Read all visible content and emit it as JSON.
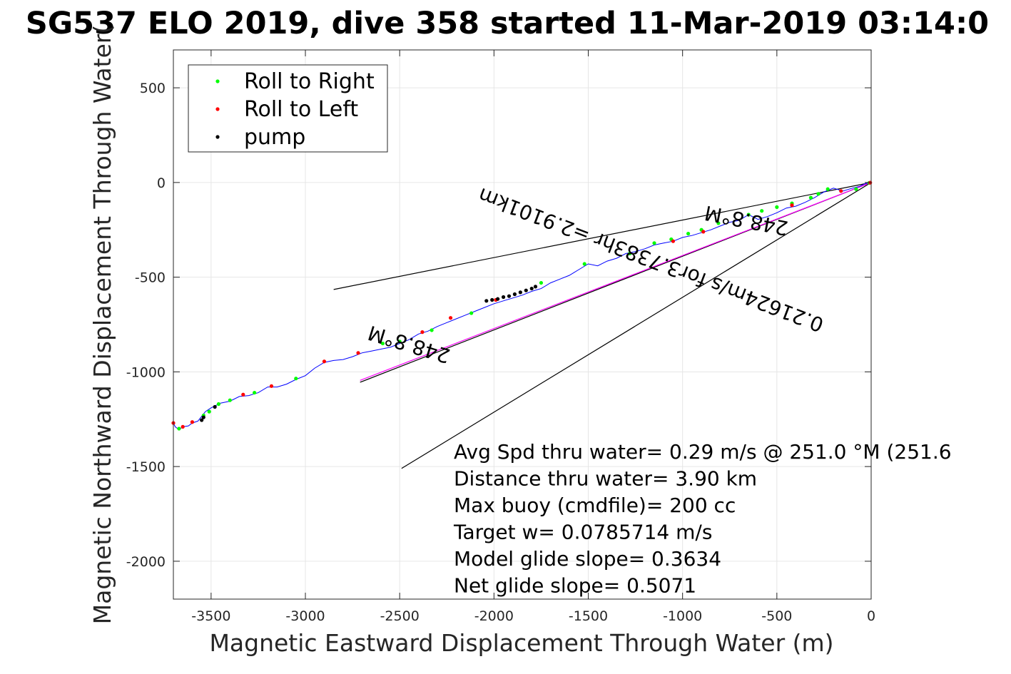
{
  "chart_data": {
    "type": "scatter",
    "title": "SG537 ELO 2019, dive 358 started 11-Mar-2019 03:14:0",
    "xlabel": "Magnetic Eastward Displacement Through Water (m)",
    "ylabel": "Magnetic Northward Displacement Through Water(",
    "xlim": [
      -3700,
      0
    ],
    "ylim": [
      -2200,
      700
    ],
    "xticks": [
      -3500,
      -3000,
      -2500,
      -2000,
      -1500,
      -1000,
      -500,
      0
    ],
    "yticks": [
      500,
      0,
      -500,
      -1000,
      -1500,
      -2000
    ],
    "grid": true,
    "legend_position": "top-left",
    "legend": [
      {
        "label": "Roll to Right",
        "color": "#00ff00"
      },
      {
        "label": "Roll to Left",
        "color": "#ff0000"
      },
      {
        "label": "pump",
        "color": "#000000"
      }
    ],
    "track": {
      "color": "#0000ff",
      "x": [
        0,
        -30,
        -60,
        -100,
        -150,
        -200,
        -250,
        -300,
        -350,
        -400,
        -450,
        -500,
        -550,
        -600,
        -650,
        -700,
        -750,
        -800,
        -850,
        -900,
        -950,
        -1000,
        -1050,
        -1100,
        -1150,
        -1200,
        -1250,
        -1300,
        -1350,
        -1400,
        -1450,
        -1500,
        -1550,
        -1600,
        -1650,
        -1700,
        -1750,
        -1800,
        -1850,
        -1900,
        -1950,
        -2000,
        -2050,
        -2100,
        -2150,
        -2200,
        -2250,
        -2300,
        -2350,
        -2400,
        -2450,
        -2500,
        -2550,
        -2600,
        -2650,
        -2700,
        -2750,
        -2800,
        -2850,
        -2900,
        -2950,
        -3000,
        -3050,
        -3100,
        -3150,
        -3200,
        -3250,
        -3300,
        -3350,
        -3400,
        -3450,
        -3500,
        -3530,
        -3550,
        -3570,
        -3600,
        -3620,
        -3650,
        -3670,
        -3690,
        -3700
      ],
      "y": [
        0,
        -5,
        -20,
        -30,
        -45,
        -30,
        -50,
        -80,
        -105,
        -125,
        -135,
        -160,
        -180,
        -195,
        -170,
        -200,
        -210,
        -230,
        -250,
        -265,
        -280,
        -290,
        -310,
        -320,
        -330,
        -350,
        -365,
        -375,
        -400,
        -415,
        -440,
        -430,
        -460,
        -490,
        -510,
        -530,
        -560,
        -575,
        -595,
        -610,
        -625,
        -640,
        -660,
        -680,
        -700,
        -720,
        -740,
        -760,
        -785,
        -800,
        -830,
        -850,
        -870,
        -880,
        -890,
        -900,
        -920,
        -935,
        -940,
        -950,
        -980,
        -1020,
        -1040,
        -1065,
        -1080,
        -1080,
        -1110,
        -1125,
        -1130,
        -1155,
        -1165,
        -1190,
        -1210,
        -1235,
        -1260,
        -1270,
        -1285,
        -1290,
        -1305,
        -1290,
        -1270
      ]
    },
    "roll_right": {
      "x": [
        -10,
        -80,
        -230,
        -280,
        -320,
        -420,
        -500,
        -580,
        -650,
        -810,
        -900,
        -970,
        -1060,
        -1150,
        -1280,
        -1520,
        -1750,
        -2120,
        -2330,
        -2500,
        -2590,
        -3050,
        -3270,
        -3400,
        -3460,
        -3510,
        -3540,
        -3670
      ],
      "y": [
        -2,
        -35,
        -35,
        -60,
        -80,
        -110,
        -130,
        -150,
        -170,
        -215,
        -250,
        -270,
        -300,
        -320,
        -375,
        -430,
        -530,
        -690,
        -780,
        -840,
        -850,
        -1035,
        -1110,
        -1150,
        -1170,
        -1210,
        -1230,
        -1300
      ]
    },
    "roll_left": {
      "x": [
        -5,
        -160,
        -420,
        -890,
        -1050,
        -1990,
        -2230,
        -2380,
        -2720,
        -2900,
        -3180,
        -3330,
        -3600,
        -3700,
        -3650
      ],
      "y": [
        -1,
        -45,
        -120,
        -260,
        -310,
        -620,
        -715,
        -790,
        -900,
        -945,
        -1075,
        -1120,
        -1265,
        -1270,
        -1290
      ],
      "x_extra": [
        -3690,
        -3680
      ]
    },
    "pump": {
      "x": [
        -1780,
        -1800,
        -1830,
        -1860,
        -1890,
        -1920,
        -1950,
        -1980,
        -2010,
        -2040,
        -3480,
        -3540,
        -3550
      ],
      "y": [
        -550,
        -560,
        -570,
        -580,
        -590,
        -600,
        -605,
        -615,
        -620,
        -625,
        -1185,
        -1240,
        -1255
      ]
    },
    "lines": [
      {
        "label": "",
        "color": "#000000",
        "x": [
          0,
          -2850
        ],
        "y": [
          0,
          -565
        ]
      },
      {
        "label": "",
        "color": "#000000",
        "x": [
          0,
          -2490
        ],
        "y": [
          0,
          -1510
        ]
      },
      {
        "label": "",
        "color": "#000000",
        "x": [
          0,
          -2710
        ],
        "y": [
          0,
          -1055
        ]
      },
      {
        "label": "",
        "color": "#ff00ff",
        "x": [
          0,
          -2710
        ],
        "y": [
          0,
          -1045
        ]
      }
    ],
    "annotations": [
      {
        "text": "248.8°M",
        "x": -655,
        "y": -165,
        "angle": 191
      },
      {
        "text": "0.21624m/s for3.7383hr =2.9101km",
        "x": -1155,
        "y": -375,
        "angle": 201
      },
      {
        "text": "248.8°M",
        "x": -2440,
        "y": -820,
        "angle": 197
      }
    ],
    "stats": [
      "Avg Spd thru water=  0.29 m/s @ 251.0 °M (251.6",
      "Distance thru water=  3.90 km",
      "Max buoy (cmdfile)= 200 cc",
      "Target w= 0.0785714 m/s",
      "Model glide slope= 0.3634",
      "Net glide slope= 0.5071"
    ]
  }
}
